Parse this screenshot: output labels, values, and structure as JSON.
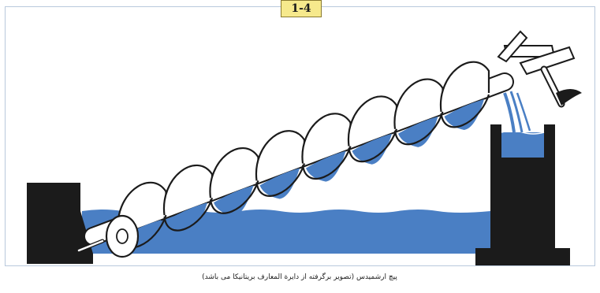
{
  "figure": {
    "number": "1-4",
    "caption": "پیچ ارشمیدس (تصویر برگرفته از دایرة المعارف بریتانیکا می باشد)"
  },
  "colors": {
    "water": "#4a7fc4",
    "block": "#1b1b1b",
    "badge": "#f6e98c"
  }
}
